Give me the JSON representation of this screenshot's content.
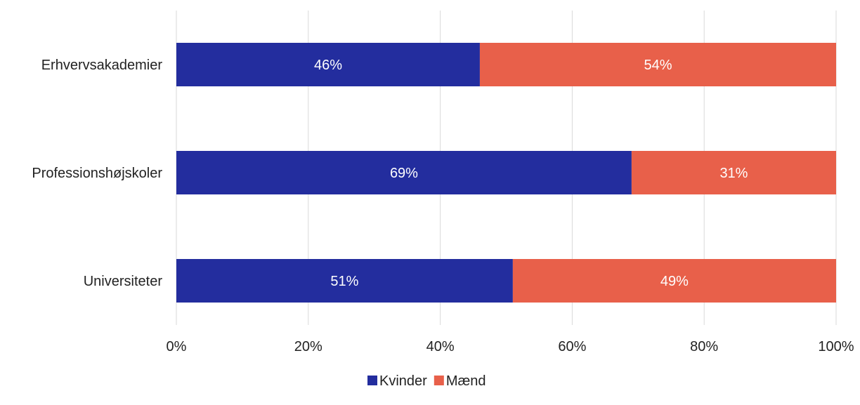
{
  "chart_data": {
    "type": "bar",
    "orientation": "horizontal",
    "stacked": true,
    "categories": [
      "Erhvervsakademier",
      "Professionshøjskoler",
      "Universiteter"
    ],
    "series": [
      {
        "name": "Kvinder",
        "values": [
          46,
          69,
          51
        ],
        "labels": [
          "46%",
          "69%",
          "51%"
        ],
        "color": "#232d9e"
      },
      {
        "name": "Mænd",
        "values": [
          54,
          31,
          49
        ],
        "labels": [
          "54%",
          "31%",
          "49%"
        ],
        "color": "#e8604a"
      }
    ],
    "xlim": [
      0,
      100
    ],
    "x_ticks": [
      0,
      20,
      40,
      60,
      80,
      100
    ],
    "x_tick_labels": [
      "0%",
      "20%",
      "40%",
      "60%",
      "80%",
      "100%"
    ],
    "grid": "vertical",
    "grid_color": "#d9d9d9",
    "legend_position": "bottom"
  }
}
